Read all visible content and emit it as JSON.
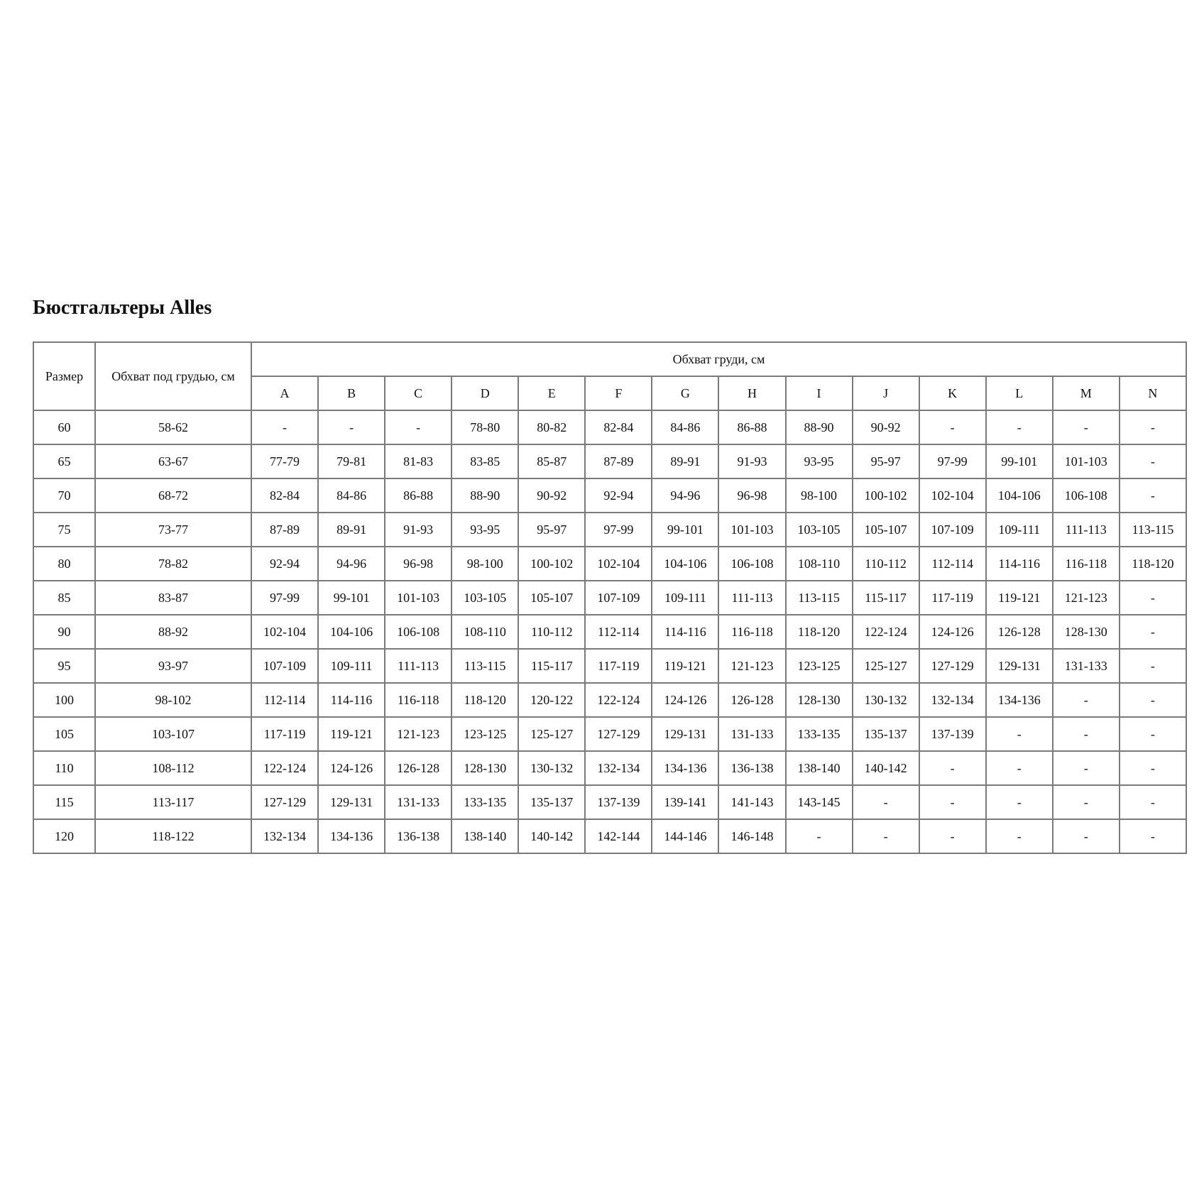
{
  "title": "Бюстгальтеры Alles",
  "table": {
    "header": {
      "size": "Размер",
      "underbust": "Обхват под грудью, см",
      "bust": "Обхват груди, см",
      "cups": [
        "A",
        "B",
        "C",
        "D",
        "E",
        "F",
        "G",
        "H",
        "I",
        "J",
        "K",
        "L",
        "M",
        "N"
      ]
    },
    "rows": [
      [
        "60",
        "58-62",
        "-",
        "-",
        "-",
        "78-80",
        "80-82",
        "82-84",
        "84-86",
        "86-88",
        "88-90",
        "90-92",
        "-",
        "-",
        "-",
        "-"
      ],
      [
        "65",
        "63-67",
        "77-79",
        "79-81",
        "81-83",
        "83-85",
        "85-87",
        "87-89",
        "89-91",
        "91-93",
        "93-95",
        "95-97",
        "97-99",
        "99-101",
        "101-103",
        "-"
      ],
      [
        "70",
        "68-72",
        "82-84",
        "84-86",
        "86-88",
        "88-90",
        "90-92",
        "92-94",
        "94-96",
        "96-98",
        "98-100",
        "100-102",
        "102-104",
        "104-106",
        "106-108",
        "-"
      ],
      [
        "75",
        "73-77",
        "87-89",
        "89-91",
        "91-93",
        "93-95",
        "95-97",
        "97-99",
        "99-101",
        "101-103",
        "103-105",
        "105-107",
        "107-109",
        "109-111",
        "111-113",
        "113-115"
      ],
      [
        "80",
        "78-82",
        "92-94",
        "94-96",
        "96-98",
        "98-100",
        "100-102",
        "102-104",
        "104-106",
        "106-108",
        "108-110",
        "110-112",
        "112-114",
        "114-116",
        "116-118",
        "118-120"
      ],
      [
        "85",
        "83-87",
        "97-99",
        "99-101",
        "101-103",
        "103-105",
        "105-107",
        "107-109",
        "109-111",
        "111-113",
        "113-115",
        "115-117",
        "117-119",
        "119-121",
        "121-123",
        "-"
      ],
      [
        "90",
        "88-92",
        "102-104",
        "104-106",
        "106-108",
        "108-110",
        "110-112",
        "112-114",
        "114-116",
        "116-118",
        "118-120",
        "122-124",
        "124-126",
        "126-128",
        "128-130",
        "-"
      ],
      [
        "95",
        "93-97",
        "107-109",
        "109-111",
        "111-113",
        "113-115",
        "115-117",
        "117-119",
        "119-121",
        "121-123",
        "123-125",
        "125-127",
        "127-129",
        "129-131",
        "131-133",
        "-"
      ],
      [
        "100",
        "98-102",
        "112-114",
        "114-116",
        "116-118",
        "118-120",
        "120-122",
        "122-124",
        "124-126",
        "126-128",
        "128-130",
        "130-132",
        "132-134",
        "134-136",
        "-",
        "-"
      ],
      [
        "105",
        "103-107",
        "117-119",
        "119-121",
        "121-123",
        "123-125",
        "125-127",
        "127-129",
        "129-131",
        "131-133",
        "133-135",
        "135-137",
        "137-139",
        "-",
        "-",
        "-"
      ],
      [
        "110",
        "108-112",
        "122-124",
        "124-126",
        "126-128",
        "128-130",
        "130-132",
        "132-134",
        "134-136",
        "136-138",
        "138-140",
        "140-142",
        "-",
        "-",
        "-",
        "-"
      ],
      [
        "115",
        "113-117",
        "127-129",
        "129-131",
        "131-133",
        "133-135",
        "135-137",
        "137-139",
        "139-141",
        "141-143",
        "143-145",
        "-",
        "-",
        "-",
        "-",
        "-"
      ],
      [
        "120",
        "118-122",
        "132-134",
        "134-136",
        "136-138",
        "138-140",
        "140-142",
        "142-144",
        "144-146",
        "146-148",
        "-",
        "-",
        "-",
        "-",
        "-",
        "-"
      ]
    ]
  }
}
